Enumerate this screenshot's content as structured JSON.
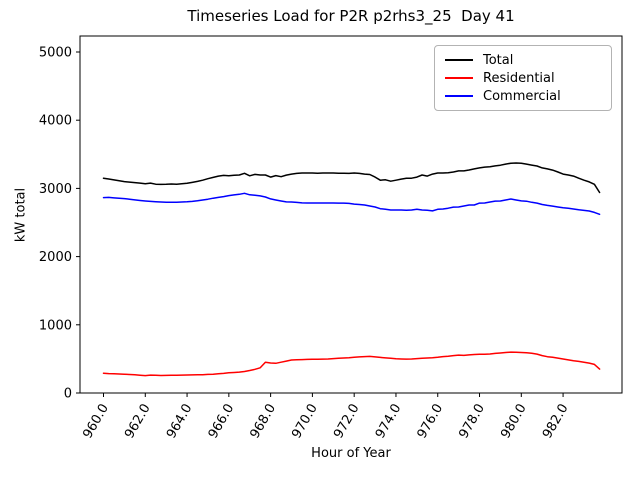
{
  "chart_data": {
    "type": "line",
    "title": "Timeseries Load for P2R p2rhs3_25  Day 41",
    "xlabel": "Hour of Year",
    "ylabel": "kW total",
    "grid": false,
    "legend_position": "upper right",
    "xlim": [
      958.81,
      984.94
    ],
    "ylim": [
      0,
      5235
    ],
    "x_start": 960.0,
    "x_step": 0.25,
    "x_end": 983.75,
    "xtick_labels": [
      "960.0",
      "962.0",
      "964.0",
      "966.0",
      "968.0",
      "970.0",
      "972.0",
      "974.0",
      "976.0",
      "978.0",
      "980.0",
      "982.0"
    ],
    "ytick_labels": [
      "0",
      "1000",
      "2000",
      "3000",
      "4000",
      "5000"
    ],
    "series": [
      {
        "name": "Total",
        "color": "#000000",
        "values": [
          3150,
          3138,
          3125,
          3112,
          3100,
          3092,
          3085,
          3078,
          3068,
          3078,
          3062,
          3058,
          3060,
          3064,
          3060,
          3068,
          3075,
          3088,
          3102,
          3120,
          3142,
          3162,
          3180,
          3190,
          3186,
          3194,
          3196,
          3222,
          3185,
          3205,
          3196,
          3196,
          3166,
          3188,
          3172,
          3195,
          3210,
          3220,
          3226,
          3226,
          3226,
          3222,
          3226,
          3226,
          3226,
          3222,
          3222,
          3220,
          3226,
          3220,
          3210,
          3204,
          3165,
          3120,
          3126,
          3106,
          3120,
          3136,
          3150,
          3150,
          3166,
          3196,
          3180,
          3210,
          3226,
          3226,
          3230,
          3240,
          3256,
          3256,
          3270,
          3286,
          3300,
          3312,
          3316,
          3330,
          3340,
          3356,
          3370,
          3372,
          3370,
          3356,
          3342,
          3328,
          3300,
          3286,
          3268,
          3240,
          3210,
          3196,
          3180,
          3150,
          3120,
          3096,
          3060,
          2940
        ]
      },
      {
        "name": "Residential",
        "color": "#ff0000",
        "values": [
          290,
          285,
          281,
          278,
          275,
          271,
          267,
          261,
          255,
          262,
          259,
          257,
          258,
          260,
          260,
          262,
          264,
          265,
          267,
          269,
          272,
          276,
          281,
          288,
          296,
          301,
          306,
          315,
          330,
          348,
          370,
          452,
          440,
          436,
          452,
          468,
          484,
          487,
          490,
          492,
          494,
          495,
          497,
          499,
          505,
          509,
          513,
          518,
          525,
          529,
          534,
          537,
          530,
          522,
          515,
          509,
          501,
          498,
          497,
          498,
          505,
          510,
          513,
          516,
          523,
          534,
          540,
          549,
          555,
          552,
          559,
          564,
          568,
          569,
          572,
          580,
          586,
          594,
          600,
          598,
          594,
          589,
          583,
          570,
          548,
          532,
          524,
          512,
          498,
          486,
          472,
          464,
          452,
          438,
          420,
          350
        ]
      },
      {
        "name": "Commercial",
        "color": "#0000ff",
        "values": [
          2865,
          2868,
          2860,
          2855,
          2850,
          2842,
          2832,
          2822,
          2815,
          2810,
          2805,
          2800,
          2798,
          2796,
          2798,
          2800,
          2804,
          2810,
          2818,
          2830,
          2842,
          2856,
          2868,
          2880,
          2894,
          2904,
          2914,
          2928,
          2906,
          2900,
          2890,
          2874,
          2846,
          2830,
          2815,
          2802,
          2800,
          2794,
          2788,
          2786,
          2786,
          2786,
          2786,
          2786,
          2786,
          2785,
          2784,
          2780,
          2770,
          2764,
          2757,
          2742,
          2727,
          2702,
          2694,
          2684,
          2683,
          2683,
          2680,
          2683,
          2694,
          2683,
          2680,
          2670,
          2694,
          2698,
          2710,
          2726,
          2727,
          2742,
          2756,
          2757,
          2784,
          2786,
          2800,
          2814,
          2815,
          2830,
          2844,
          2830,
          2816,
          2812,
          2796,
          2784,
          2764,
          2750,
          2740,
          2728,
          2716,
          2708,
          2698,
          2686,
          2678,
          2668,
          2648,
          2620
        ]
      }
    ]
  }
}
